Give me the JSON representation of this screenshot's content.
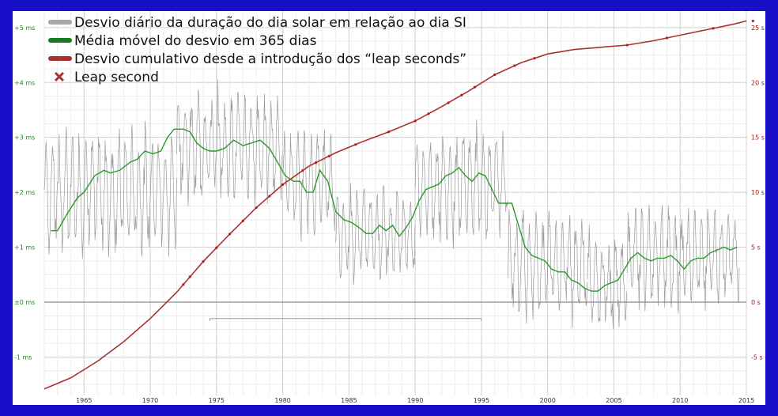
{
  "chart_data": {
    "type": "line",
    "xlim": [
      1962,
      2015
    ],
    "x_ticks": [
      "1965",
      "1970",
      "1975",
      "1980",
      "1985",
      "1990",
      "1995",
      "2000",
      "2005",
      "2010",
      "2015"
    ],
    "left_axis": {
      "ylim": [
        -1.7,
        5.3
      ],
      "ticks": [
        {
          "v": 5,
          "label": "+5 ms"
        },
        {
          "v": 4,
          "label": "+4 ms"
        },
        {
          "v": 3,
          "label": "+3 ms"
        },
        {
          "v": 2,
          "label": "+2 ms"
        },
        {
          "v": 1,
          "label": "+1 ms"
        },
        {
          "v": 0,
          "label": "±0 ms"
        },
        {
          "v": -1,
          "label": "-1 ms"
        }
      ]
    },
    "right_axis": {
      "ylim": [
        -8.5,
        26.5
      ],
      "ticks": [
        {
          "v": 25,
          "label": "25 s"
        },
        {
          "v": 20,
          "label": "20 s"
        },
        {
          "v": 15,
          "label": "15 s"
        },
        {
          "v": 10,
          "label": "10 s"
        },
        {
          "v": 5,
          "label": "5 s"
        },
        {
          "v": 0,
          "label": "0 s"
        },
        {
          "v": -5,
          "label": "-5 s"
        }
      ]
    },
    "legend": [
      {
        "label": "Desvio diário da duração do dia solar em relação ao dia SI",
        "color": "#a8a8a8",
        "kind": "line"
      },
      {
        "label": "Média móvel do desvio em 365 dias",
        "color": "#1e7a1e",
        "kind": "line"
      },
      {
        "label": "Desvio cumulativo desde a introdução dos “leap seconds”",
        "color": "#a83232",
        "kind": "line"
      },
      {
        "label": "Leap second",
        "color": "#a83232",
        "kind": "x"
      }
    ],
    "series": [
      {
        "name": "Média móvel do desvio em 365 dias",
        "axis": "left",
        "color": "#2a9a2a",
        "points": [
          [
            1962.5,
            1.3
          ],
          [
            1963,
            1.3
          ],
          [
            1963.7,
            1.6
          ],
          [
            1964.5,
            1.9
          ],
          [
            1965,
            2.0
          ],
          [
            1965.8,
            2.3
          ],
          [
            1966.5,
            2.4
          ],
          [
            1967,
            2.35
          ],
          [
            1967.7,
            2.4
          ],
          [
            1968.5,
            2.55
          ],
          [
            1969,
            2.6
          ],
          [
            1969.6,
            2.75
          ],
          [
            1970.2,
            2.7
          ],
          [
            1970.8,
            2.75
          ],
          [
            1971.3,
            3.0
          ],
          [
            1971.8,
            3.15
          ],
          [
            1972.5,
            3.15
          ],
          [
            1973.0,
            3.1
          ],
          [
            1973.5,
            2.9
          ],
          [
            1974.0,
            2.8
          ],
          [
            1974.5,
            2.75
          ],
          [
            1975.0,
            2.75
          ],
          [
            1975.6,
            2.8
          ],
          [
            1976.3,
            2.95
          ],
          [
            1977.0,
            2.85
          ],
          [
            1977.7,
            2.9
          ],
          [
            1978.3,
            2.95
          ],
          [
            1979.0,
            2.8
          ],
          [
            1979.6,
            2.55
          ],
          [
            1980.2,
            2.3
          ],
          [
            1980.8,
            2.2
          ],
          [
            1981.3,
            2.2
          ],
          [
            1981.8,
            2.0
          ],
          [
            1982.3,
            2.0
          ],
          [
            1982.8,
            2.4
          ],
          [
            1983.4,
            2.2
          ],
          [
            1984.0,
            1.65
          ],
          [
            1984.6,
            1.5
          ],
          [
            1985.2,
            1.45
          ],
          [
            1985.8,
            1.35
          ],
          [
            1986.3,
            1.25
          ],
          [
            1986.8,
            1.25
          ],
          [
            1987.3,
            1.4
          ],
          [
            1987.8,
            1.3
          ],
          [
            1988.3,
            1.4
          ],
          [
            1988.8,
            1.2
          ],
          [
            1989.3,
            1.35
          ],
          [
            1989.8,
            1.55
          ],
          [
            1990.3,
            1.85
          ],
          [
            1990.8,
            2.05
          ],
          [
            1991.3,
            2.1
          ],
          [
            1991.8,
            2.15
          ],
          [
            1992.3,
            2.3
          ],
          [
            1992.8,
            2.35
          ],
          [
            1993.3,
            2.45
          ],
          [
            1993.8,
            2.3
          ],
          [
            1994.3,
            2.2
          ],
          [
            1994.8,
            2.35
          ],
          [
            1995.3,
            2.3
          ],
          [
            1995.8,
            2.05
          ],
          [
            1996.3,
            1.8
          ],
          [
            1996.8,
            1.8
          ],
          [
            1997.3,
            1.8
          ],
          [
            1997.8,
            1.4
          ],
          [
            1998.3,
            1.0
          ],
          [
            1998.8,
            0.85
          ],
          [
            1999.3,
            0.8
          ],
          [
            1999.8,
            0.75
          ],
          [
            2000.3,
            0.6
          ],
          [
            2000.8,
            0.55
          ],
          [
            2001.3,
            0.55
          ],
          [
            2001.8,
            0.4
          ],
          [
            2002.3,
            0.35
          ],
          [
            2002.8,
            0.25
          ],
          [
            2003.3,
            0.2
          ],
          [
            2003.8,
            0.2
          ],
          [
            2004.3,
            0.3
          ],
          [
            2004.8,
            0.35
          ],
          [
            2005.3,
            0.4
          ],
          [
            2005.8,
            0.6
          ],
          [
            2006.3,
            0.8
          ],
          [
            2006.8,
            0.9
          ],
          [
            2007.3,
            0.8
          ],
          [
            2007.8,
            0.75
          ],
          [
            2008.3,
            0.8
          ],
          [
            2008.8,
            0.8
          ],
          [
            2009.3,
            0.85
          ],
          [
            2009.8,
            0.75
          ],
          [
            2010.3,
            0.6
          ],
          [
            2010.8,
            0.75
          ],
          [
            2011.3,
            0.8
          ],
          [
            2011.8,
            0.8
          ],
          [
            2012.3,
            0.9
          ],
          [
            2012.8,
            0.95
          ],
          [
            2013.3,
            1.0
          ],
          [
            2013.8,
            0.95
          ],
          [
            2014.3,
            1.0
          ]
        ]
      },
      {
        "name": "Desvio cumulativo desde a introdução dos “leap seconds”",
        "axis": "right",
        "color": "#a83232",
        "points": [
          [
            1962,
            -7.9
          ],
          [
            1964,
            -6.9
          ],
          [
            1966,
            -5.4
          ],
          [
            1968,
            -3.6
          ],
          [
            1970,
            -1.5
          ],
          [
            1972,
            0.9
          ],
          [
            1974,
            3.7
          ],
          [
            1976,
            6.2
          ],
          [
            1978,
            8.6
          ],
          [
            1980,
            10.7
          ],
          [
            1982,
            12.4
          ],
          [
            1984,
            13.6
          ],
          [
            1986,
            14.6
          ],
          [
            1988,
            15.5
          ],
          [
            1990,
            16.5
          ],
          [
            1992,
            17.8
          ],
          [
            1994,
            19.2
          ],
          [
            1996,
            20.7
          ],
          [
            1998,
            21.8
          ],
          [
            2000,
            22.6
          ],
          [
            2002,
            23.0
          ],
          [
            2004,
            23.2
          ],
          [
            2006,
            23.4
          ],
          [
            2008,
            23.8
          ],
          [
            2010,
            24.3
          ],
          [
            2012,
            24.8
          ],
          [
            2014,
            25.3
          ],
          [
            2015,
            25.6
          ]
        ]
      }
    ],
    "leap_seconds_years": [
      1972.5,
      1973.0,
      1974.0,
      1975.0,
      1976.0,
      1977.0,
      1978.0,
      1979.0,
      1980.0,
      1981.5,
      1982.5,
      1983.5,
      1985.5,
      1988.0,
      1990.0,
      1991.0,
      1992.5,
      1993.5,
      1994.5,
      1996.0,
      1997.5,
      1999.0,
      2006.0,
      2009.0,
      2012.5,
      2015.5
    ],
    "daily_deviation_envelope": {
      "axis": "left",
      "color": "#8a8a8a",
      "segments": [
        {
          "from": 1962.0,
          "to": 1972.0,
          "low": 0.6,
          "high": 3.4
        },
        {
          "from": 1972.0,
          "to": 1980.0,
          "low": 1.6,
          "high": 4.1
        },
        {
          "from": 1980.0,
          "to": 1984.0,
          "low": 1.0,
          "high": 3.4
        },
        {
          "from": 1984.0,
          "to": 1990.0,
          "low": 0.2,
          "high": 2.3
        },
        {
          "from": 1990.0,
          "to": 1997.0,
          "low": 0.9,
          "high": 3.4
        },
        {
          "from": 1997.0,
          "to": 2003.0,
          "low": -0.5,
          "high": 1.9
        },
        {
          "from": 2003.0,
          "to": 2006.0,
          "low": -0.8,
          "high": 1.5
        },
        {
          "from": 2006.0,
          "to": 2014.5,
          "low": -0.4,
          "high": 2.0
        }
      ]
    },
    "bracket": {
      "from": 1974.5,
      "to": 1995.0,
      "y_left": -0.3
    }
  }
}
